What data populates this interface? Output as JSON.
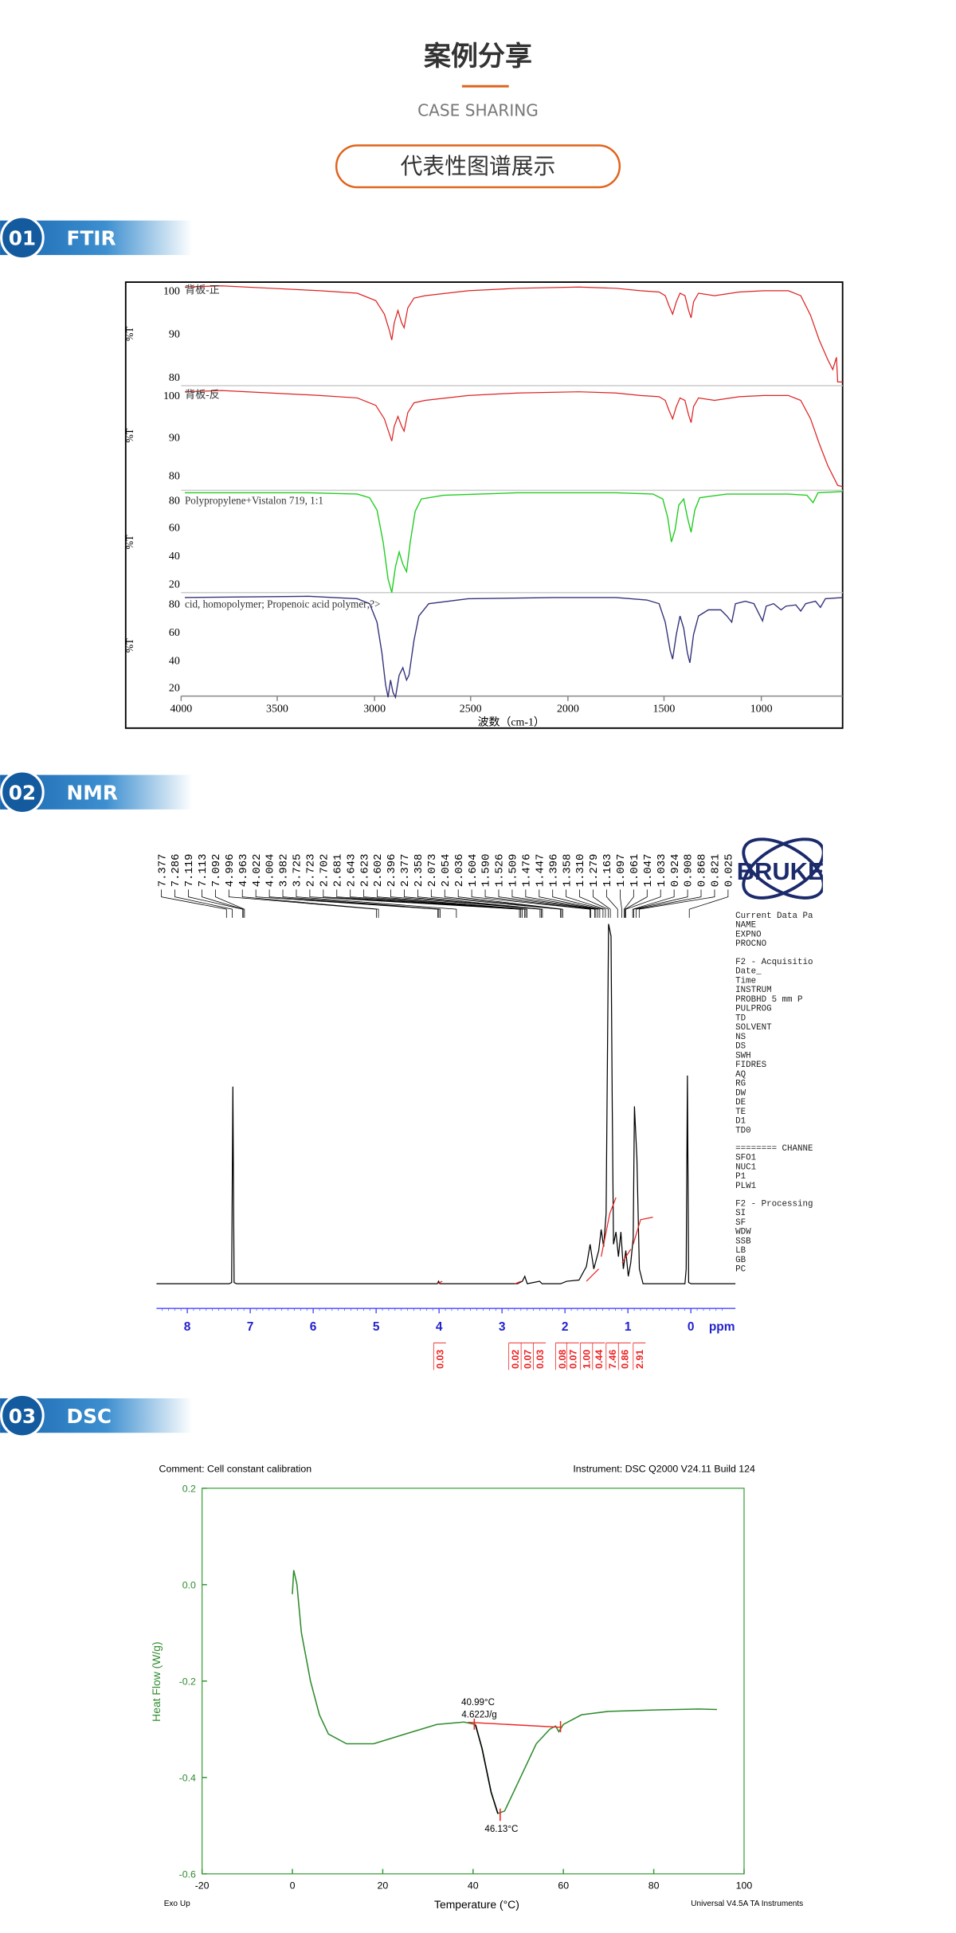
{
  "header": {
    "title": "案例分享",
    "subtitle": "CASE SHARING",
    "button": "代表性图谱展示"
  },
  "sections": [
    {
      "number": "01",
      "label": "FTIR"
    },
    {
      "number": "02",
      "label": "NMR"
    },
    {
      "number": "03",
      "label": "DSC"
    }
  ],
  "ftir": {
    "x_ticks": [
      "4000",
      "3500",
      "3000",
      "2500",
      "2000",
      "1500",
      "1000"
    ],
    "x_label": "波数（cm-1）",
    "panels": [
      {
        "name": "背板-正",
        "y_label": "%T",
        "y_ticks": [
          "100",
          "90",
          "80"
        ]
      },
      {
        "name": "背板-反",
        "y_label": "%T",
        "y_ticks": [
          "100",
          "90",
          "80"
        ]
      },
      {
        "name": "Polypropylene+Vistalon 719, 1:1",
        "y_label": "%T",
        "y_ticks": [
          "80",
          "60",
          "40",
          "20"
        ]
      },
      {
        "name": "cid, homopolymer; Propenoic acid polymer;?>",
        "y_label": "%T",
        "y_ticks": [
          "80",
          "60",
          "40",
          "20"
        ]
      }
    ]
  },
  "nmr": {
    "peak_labels": [
      "7.377",
      "7.286",
      "7.119",
      "7.113",
      "7.092",
      "4.996",
      "4.963",
      "4.022",
      "4.004",
      "3.982",
      "3.725",
      "2.723",
      "2.702",
      "2.681",
      "2.643",
      "2.623",
      "2.602",
      "2.396",
      "2.377",
      "2.358",
      "2.073",
      "2.054",
      "2.036",
      "1.604",
      "1.590",
      "1.526",
      "1.509",
      "1.476",
      "1.447",
      "1.396",
      "1.358",
      "1.310",
      "1.279",
      "1.163",
      "1.097",
      "1.061",
      "1.047",
      "1.033",
      "0.924",
      "0.908",
      "0.868",
      "0.821",
      "0.025"
    ],
    "x_ticks": [
      "8",
      "7",
      "6",
      "5",
      "4",
      "3",
      "2",
      "1",
      "0"
    ],
    "x_unit": "ppm",
    "integrals": [
      "0.03",
      "0.02",
      "0.07",
      "0.03",
      "0.08",
      "0.07",
      "1.00",
      "0.44",
      "7.46",
      "0.86",
      "2.91"
    ],
    "logo": "BRUKER",
    "params": [
      "Current Data Pa",
      "NAME",
      "EXPNO",
      "PROCNO",
      "F2 - Acquisitio",
      "Date_",
      "Time",
      "INSTRUM",
      "PROBHD   5 mm P",
      "PULPROG",
      "TD",
      "SOLVENT",
      "NS",
      "DS",
      "SWH",
      "FIDRES",
      "AQ",
      "RG",
      "DW",
      "DE",
      "TE",
      "D1",
      "TD0",
      "======== CHANNE",
      "SFO1",
      "NUC1",
      "P1",
      "PLW1",
      "F2 - Processing",
      "SI",
      "SF",
      "WDW",
      "SSB",
      "LB",
      "GB",
      "PC"
    ]
  },
  "dsc": {
    "comment": "Comment: Cell constant calibration",
    "instrument": "Instrument: DSC Q2000 V24.11 Build 124",
    "x_label": "Temperature (°C)",
    "y_label": "Heat Flow (W/g)",
    "x_ticks": [
      "-20",
      "0",
      "20",
      "40",
      "60",
      "80",
      "100"
    ],
    "y_ticks": [
      "0.2",
      "0.0",
      "-0.2",
      "-0.4",
      "-0.6"
    ],
    "annotations": [
      "40.99°C",
      "4.622J/g",
      "46.13°C"
    ],
    "footer_left": "Exo Up",
    "footer_right": "Universal V4.5A TA Instruments"
  }
}
